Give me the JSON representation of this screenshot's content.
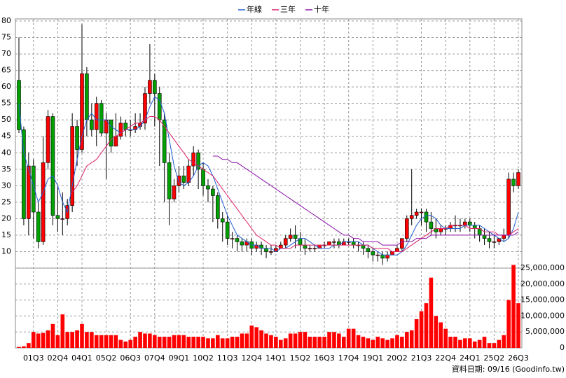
{
  "chart_data": {
    "type": "candlestick",
    "legend": "top",
    "grid": true,
    "up_color": "#ff0000",
    "down_color": "#00a000",
    "categories": [
      null,
      null,
      null,
      "01Q3",
      null,
      null,
      null,
      null,
      "02Q4",
      null,
      null,
      null,
      null,
      "04Q1",
      null,
      null,
      null,
      null,
      "05Q2",
      null,
      null,
      null,
      null,
      "06Q3",
      null,
      null,
      null,
      null,
      "07Q4",
      null,
      null,
      null,
      null,
      "09Q1",
      null,
      null,
      null,
      null,
      "10Q2",
      null,
      null,
      null,
      null,
      "11Q3",
      null,
      null,
      null,
      null,
      "12Q4",
      null,
      null,
      null,
      null,
      "14Q1",
      null,
      null,
      null,
      null,
      "15Q2",
      null,
      null,
      null,
      null,
      "16Q3",
      null,
      null,
      null,
      null,
      "17Q4",
      null,
      null,
      null,
      null,
      "19Q1",
      null,
      null,
      null,
      null,
      "20Q2",
      null,
      null,
      null,
      null,
      "21Q3",
      null,
      null,
      null,
      null,
      "22Q4",
      null,
      null,
      null,
      null,
      "24Q1",
      null,
      null,
      null,
      null,
      "25Q2",
      null,
      null,
      null,
      null,
      "26Q3"
    ],
    "open": [
      62,
      47,
      20,
      36,
      22,
      13,
      37,
      51,
      21,
      20,
      20,
      24,
      48,
      41,
      64,
      50,
      47,
      55,
      46,
      50,
      42,
      45,
      49,
      47,
      47,
      48,
      49,
      58,
      62,
      58,
      50,
      37,
      26,
      30,
      33,
      31,
      36,
      40,
      35,
      30,
      29,
      27,
      20,
      19,
      14,
      14,
      13,
      12,
      13,
      11,
      12,
      11,
      10,
      10,
      11,
      12,
      14,
      15,
      14,
      12,
      11,
      11,
      11,
      12,
      12,
      13,
      13,
      12,
      13,
      13,
      12,
      12,
      11,
      10,
      9,
      9,
      8,
      9,
      10,
      11,
      14,
      20,
      21,
      22,
      22,
      19,
      17,
      16,
      17,
      17,
      18,
      18,
      18,
      19,
      18,
      17,
      15,
      14,
      13,
      13,
      14,
      15,
      32,
      30
    ],
    "high": [
      75,
      48,
      40,
      38,
      25,
      45,
      53,
      52,
      30,
      28,
      26,
      52,
      50,
      79,
      66,
      55,
      57,
      56,
      52,
      50,
      52,
      51,
      50,
      50,
      52,
      52,
      60,
      73,
      64,
      60,
      52,
      40,
      32,
      36,
      36,
      38,
      42,
      41,
      37,
      32,
      30,
      28,
      22,
      21,
      16,
      15,
      14,
      14,
      14,
      13,
      13,
      12,
      12,
      12,
      13,
      15,
      17,
      18,
      16,
      14,
      12,
      12,
      12,
      13,
      13,
      14,
      14,
      14,
      14,
      14,
      13,
      13,
      12,
      11,
      10,
      10,
      10,
      10,
      12,
      14,
      21,
      35,
      23,
      23,
      23,
      22,
      20,
      18,
      18,
      19,
      21,
      20,
      20,
      20,
      19,
      18,
      17,
      16,
      15,
      14,
      17,
      34,
      34,
      35
    ],
    "low": [
      46,
      18,
      15,
      14,
      11,
      12,
      35,
      18,
      16,
      15,
      18,
      22,
      36,
      40,
      45,
      45,
      42,
      45,
      32,
      40,
      42,
      44,
      45,
      45,
      46,
      47,
      47,
      55,
      48,
      36,
      25,
      18,
      25,
      28,
      29,
      30,
      33,
      29,
      27,
      25,
      19,
      17,
      13,
      12,
      11,
      10,
      10,
      10,
      9,
      10,
      9,
      8,
      9,
      10,
      11,
      11,
      13,
      11,
      10,
      9,
      10,
      10,
      11,
      11,
      12,
      11,
      11,
      12,
      12,
      11,
      10,
      9,
      8,
      7,
      7,
      6,
      7,
      9,
      10,
      10,
      13,
      18,
      20,
      18,
      16,
      15,
      14,
      15,
      15,
      16,
      16,
      16,
      17,
      16,
      14,
      13,
      12,
      11,
      11,
      12,
      13,
      14,
      28,
      29
    ],
    "close": [
      47,
      20,
      36,
      22,
      13,
      37,
      51,
      21,
      20,
      20,
      24,
      48,
      41,
      64,
      50,
      47,
      55,
      46,
      50,
      42,
      45,
      49,
      47,
      47,
      48,
      49,
      58,
      62,
      58,
      50,
      37,
      26,
      30,
      33,
      31,
      36,
      40,
      35,
      30,
      29,
      27,
      20,
      19,
      14,
      14,
      13,
      12,
      13,
      11,
      12,
      11,
      10,
      10,
      11,
      12,
      14,
      15,
      14,
      12,
      11,
      11,
      11,
      12,
      12,
      13,
      13,
      12,
      13,
      13,
      12,
      12,
      11,
      10,
      9,
      9,
      8,
      9,
      10,
      11,
      14,
      20,
      21,
      22,
      22,
      19,
      17,
      16,
      17,
      17,
      18,
      18,
      18,
      19,
      18,
      17,
      15,
      14,
      13,
      13,
      14,
      15,
      32,
      30,
      34
    ],
    "series": [
      {
        "name": "年線",
        "color": "#1f5fd0",
        "values": [
          55,
          40,
          35,
          30,
          25,
          28,
          32,
          33,
          30,
          25,
          22,
          30,
          38,
          45,
          50,
          52,
          50,
          50,
          50,
          48,
          47,
          46,
          47,
          47,
          47,
          48,
          50,
          54,
          57,
          56,
          52,
          44,
          36,
          31,
          30,
          31,
          33,
          36,
          37,
          36,
          33,
          29,
          25,
          21,
          18,
          15,
          14,
          13,
          12,
          12,
          11,
          11,
          11,
          10,
          11,
          11,
          12,
          13,
          14,
          14,
          13,
          12,
          11,
          11,
          11,
          12,
          12,
          13,
          13,
          13,
          13,
          12,
          12,
          11,
          10,
          9,
          9,
          9,
          9,
          10,
          12,
          15,
          18,
          20,
          21,
          21,
          20,
          18,
          17,
          17,
          17,
          17,
          18,
          18,
          18,
          18,
          17,
          16,
          15,
          14,
          13,
          14,
          17,
          22
        ]
      },
      {
        "name": "三年",
        "color": "#e0206a",
        "values": [
          null,
          null,
          null,
          null,
          null,
          null,
          null,
          null,
          null,
          null,
          null,
          28,
          30,
          33,
          36,
          37,
          38,
          40,
          42,
          44,
          45,
          46,
          47,
          48,
          49,
          49,
          50,
          51,
          51,
          50,
          48,
          46,
          44,
          42,
          40,
          38,
          37,
          36,
          35,
          34,
          33,
          31,
          29,
          27,
          25,
          23,
          21,
          19,
          17,
          15,
          14,
          13,
          12,
          12,
          11,
          11,
          11,
          12,
          12,
          12,
          12,
          12,
          12,
          12,
          12,
          12,
          12,
          12,
          12,
          12,
          12,
          12,
          12,
          11,
          11,
          11,
          11,
          10,
          10,
          10,
          11,
          12,
          13,
          14,
          15,
          16,
          17,
          17,
          17,
          18,
          18,
          18,
          18,
          17,
          17,
          17,
          16,
          16,
          16,
          15,
          15,
          15,
          16,
          17
        ]
      },
      {
        "name": "十年",
        "color": "#8a10a8",
        "values": [
          null,
          null,
          null,
          null,
          null,
          null,
          null,
          null,
          null,
          null,
          null,
          null,
          null,
          null,
          null,
          null,
          null,
          null,
          null,
          null,
          null,
          null,
          null,
          null,
          null,
          null,
          null,
          null,
          null,
          null,
          null,
          null,
          null,
          null,
          null,
          null,
          null,
          null,
          null,
          null,
          39,
          39,
          38,
          38,
          37,
          37,
          36,
          35,
          34,
          33,
          32,
          31,
          30,
          29,
          28,
          27,
          26,
          25,
          24,
          23,
          22,
          21,
          20,
          19,
          18,
          17,
          16,
          15,
          15,
          14,
          14,
          13,
          13,
          13,
          13,
          12,
          12,
          12,
          12,
          13,
          13,
          13,
          14,
          14,
          14,
          15,
          15,
          15,
          15,
          15,
          15,
          15,
          15,
          15,
          15,
          15,
          15,
          15,
          15,
          15,
          15,
          15,
          15,
          16
        ]
      }
    ],
    "volume": {
      "axis": "y2",
      "color": "#ff0000",
      "values": [
        300000,
        500000,
        1500000,
        5000000,
        4500000,
        4700000,
        5500000,
        7500000,
        4000000,
        10500000,
        5000000,
        5000000,
        5500000,
        7500000,
        5000000,
        5000000,
        4000000,
        4000000,
        4000000,
        4000000,
        4000000,
        2500000,
        2000000,
        2500000,
        3500000,
        5000000,
        4500000,
        4500000,
        4000000,
        3500000,
        3500000,
        3500000,
        4000000,
        4000000,
        4000000,
        3500000,
        3500000,
        3500000,
        3500000,
        3000000,
        3000000,
        4000000,
        3000000,
        3000000,
        3500000,
        3500000,
        4500000,
        4500000,
        7000000,
        6500000,
        5500000,
        4500000,
        4000000,
        3500000,
        2500000,
        3000000,
        4500000,
        4500000,
        5000000,
        5000000,
        3500000,
        3500000,
        3500000,
        3500000,
        5000000,
        5000000,
        4500000,
        3500000,
        6000000,
        6000000,
        4000000,
        3500000,
        3000000,
        2500000,
        3500000,
        3000000,
        2500000,
        3000000,
        4000000,
        3500000,
        5000000,
        5500000,
        9000000,
        11500000,
        14000000,
        22000000,
        10000000,
        8000000,
        6000000,
        3500000,
        3500000,
        2500000,
        3000000,
        3000000,
        2000000,
        2500000,
        3500000,
        1500000,
        1500000,
        2500000,
        4000000,
        15000000,
        26000000,
        14000000
      ]
    },
    "ylim": [
      5,
      80
    ],
    "yticks": [
      10,
      15,
      20,
      25,
      30,
      35,
      40,
      45,
      50,
      55,
      60,
      65,
      70,
      75,
      80
    ],
    "y2lim": [
      0,
      25000000
    ],
    "y2ticks": [
      0,
      {
        "value": 5000000,
        "label": "5,000,000"
      },
      {
        "value": 10000000,
        "label": "10,000,000"
      },
      {
        "value": 15000000,
        "label": "15,000,000"
      },
      {
        "value": 20000000,
        "label": "20,000,000"
      },
      {
        "value": 25000000,
        "label": "25,000,000"
      }
    ],
    "source": "資料日期: 09/16 (Goodinfo.tw)"
  }
}
